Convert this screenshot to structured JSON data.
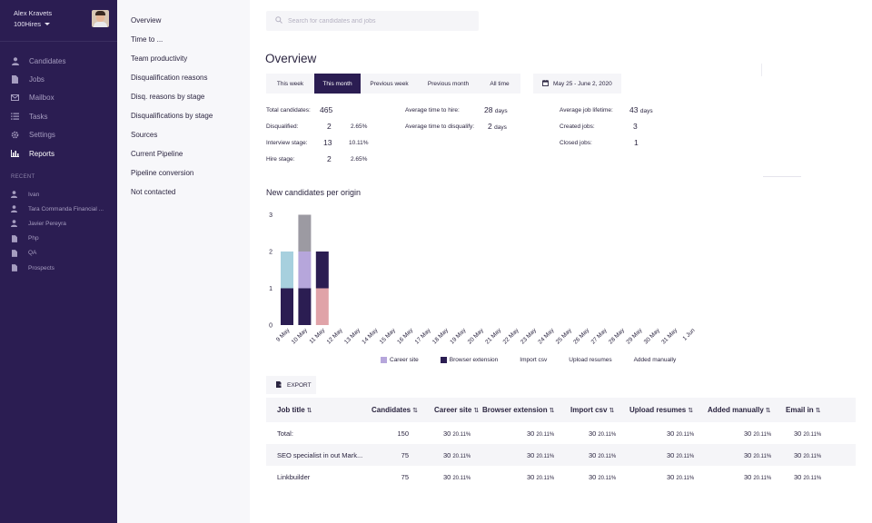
{
  "user": {
    "name": "Alex Kravets",
    "org": "100Hires"
  },
  "nav": [
    {
      "label": "Candidates",
      "icon": "person-icon",
      "active": false
    },
    {
      "label": "Jobs",
      "icon": "document-icon",
      "active": false
    },
    {
      "label": "Mailbox",
      "icon": "mail-icon",
      "active": false
    },
    {
      "label": "Tasks",
      "icon": "tasks-icon",
      "active": false
    },
    {
      "label": "Settings",
      "icon": "gear-icon",
      "active": false
    },
    {
      "label": "Reports",
      "icon": "bar-chart-icon",
      "active": true
    }
  ],
  "recent_title": "RECENT",
  "recent": [
    {
      "label": "Ivan",
      "icon": "person-icon"
    },
    {
      "label": "Tara Commanda Financial ...",
      "icon": "person-icon"
    },
    {
      "label": "Javier Pereyra",
      "icon": "person-icon"
    },
    {
      "label": "Php",
      "icon": "document-icon"
    },
    {
      "label": "QA",
      "icon": "document-icon"
    },
    {
      "label": "Prospects",
      "icon": "document-icon"
    }
  ],
  "submenu": [
    "Overview",
    "Time to ...",
    "Team productivity",
    "Disqualification reasons",
    "Disq. reasons by stage",
    "Disqualifications by stage",
    "Sources",
    "Current Pipeline",
    "Pipeline conversion",
    "Not contacted"
  ],
  "search": {
    "placeholder": "Search for candidates and jobs"
  },
  "page_title": "Overview",
  "tabs": [
    {
      "label": "This week",
      "active": false
    },
    {
      "label": "This month",
      "active": true
    },
    {
      "label": "Previous week",
      "active": false
    },
    {
      "label": "Previous month",
      "active": false
    },
    {
      "label": "All time",
      "active": false
    }
  ],
  "date_range": "May 25 - June 2, 2020",
  "stats": {
    "total_candidates": {
      "label": "Total candidates:",
      "value": "465"
    },
    "disqualified": {
      "label": "Disqualified:",
      "value": "2",
      "pct": "2.65%"
    },
    "interview_stage": {
      "label": "Interview stage:",
      "value": "13",
      "pct": "10.11%"
    },
    "hire_stage": {
      "label": "Hire stage:",
      "value": "2",
      "pct": "2.65%"
    },
    "avg_time_to_hire": {
      "label": "Average time to hire:",
      "value": "28",
      "unit": "days"
    },
    "avg_time_to_disqualify": {
      "label": "Average time to disqualify:",
      "value": "2",
      "unit": "days"
    },
    "avg_job_lifetime": {
      "label": "Average job lifetime:",
      "value": "43",
      "unit": "days"
    },
    "created_jobs": {
      "label": "Created jobs:",
      "value": "3"
    },
    "closed_jobs": {
      "label": "Closed jobs:",
      "value": "1"
    }
  },
  "chart_title": "New candidates per origin",
  "chart_data": {
    "type": "bar",
    "stacked": true,
    "categories": [
      "9 May",
      "10 May",
      "11 May",
      "12 May",
      "13 May",
      "14 May",
      "15 May",
      "16 May",
      "17 May",
      "18 May",
      "19 May",
      "20 May",
      "21 May",
      "22 May",
      "23 May",
      "24 May",
      "25 May",
      "26 May",
      "27 May",
      "28 May",
      "29 May",
      "30 May",
      "31 May",
      "1 Jun"
    ],
    "ylim": [
      0,
      3
    ],
    "yticks": [
      0,
      1,
      2,
      3
    ],
    "series": [
      {
        "name": "Browser extension",
        "color": "#2b1d52",
        "values": [
          1,
          1,
          0,
          0,
          0,
          0,
          0,
          0,
          0,
          0,
          0,
          0,
          0,
          0,
          0,
          0,
          0,
          0,
          0,
          0,
          0,
          0,
          0,
          0
        ]
      },
      {
        "name": "Career site",
        "color": "#b6a6db",
        "values": [
          0,
          1,
          0,
          0,
          0,
          0,
          0,
          0,
          0,
          0,
          0,
          0,
          0,
          0,
          0,
          0,
          0,
          0,
          0,
          0,
          0,
          0,
          0,
          0
        ]
      },
      {
        "name": "",
        "color": "#a7d0de",
        "values": [
          1,
          0,
          0,
          0,
          0,
          0,
          0,
          0,
          0,
          0,
          0,
          0,
          0,
          0,
          0,
          0,
          0,
          0,
          0,
          0,
          0,
          0,
          0,
          0
        ]
      },
      {
        "name": "",
        "color": "#9c9aa2",
        "values": [
          0,
          1,
          0,
          0,
          0,
          0,
          0,
          0,
          0,
          0,
          0,
          0,
          0,
          0,
          0,
          0,
          0,
          0,
          0,
          0,
          0,
          0,
          0,
          0
        ]
      },
      {
        "name": "",
        "color": "#e0a3a8",
        "values": [
          0,
          0,
          1,
          0,
          0,
          0,
          0,
          0,
          0,
          0,
          0,
          0,
          0,
          0,
          0,
          0,
          0,
          0,
          0,
          0,
          0,
          0,
          0,
          0
        ]
      },
      {
        "name": "",
        "color": "#2b1d52",
        "values": [
          0,
          0,
          1,
          0,
          0,
          0,
          0,
          0,
          0,
          0,
          0,
          0,
          0,
          0,
          0,
          0,
          0,
          0,
          0,
          0,
          0,
          0,
          0,
          0
        ]
      }
    ],
    "legend": [
      {
        "name": "Career site",
        "color": "#b6a6db",
        "swatch": true
      },
      {
        "name": "Browser extension",
        "color": "#2b1d52",
        "swatch": true
      },
      {
        "name": "Import csv",
        "swatch": false
      },
      {
        "name": "Upload resumes",
        "swatch": false
      },
      {
        "name": "Added manually",
        "swatch": false
      }
    ]
  },
  "export_label": "EXPORT",
  "table": {
    "columns": [
      "Job title",
      "Candidates",
      "Career site",
      "Browser extension",
      "Import csv",
      "Upload resumes",
      "Added manually",
      "Email in"
    ],
    "rows": [
      {
        "title": "Total:",
        "candidates": "150",
        "cells": [
          [
            "30",
            "20.11%"
          ],
          [
            "30",
            "20.11%"
          ],
          [
            "30",
            "20.11%"
          ],
          [
            "30",
            "20.11%"
          ],
          [
            "30",
            "20.11%"
          ],
          [
            "30",
            "20.11%"
          ]
        ]
      },
      {
        "title": "SEO specialist in out Mark...",
        "candidates": "75",
        "cells": [
          [
            "30",
            "20.11%"
          ],
          [
            "30",
            "20.11%"
          ],
          [
            "30",
            "20.11%"
          ],
          [
            "30",
            "20.11%"
          ],
          [
            "30",
            "20.11%"
          ],
          [
            "30",
            "20.11%"
          ]
        ]
      },
      {
        "title": "Linkbuilder",
        "candidates": "75",
        "cells": [
          [
            "30",
            "20.11%"
          ],
          [
            "30",
            "20.11%"
          ],
          [
            "30",
            "20.11%"
          ],
          [
            "30",
            "20.11%"
          ],
          [
            "30",
            "20.11%"
          ],
          [
            "30",
            "20.11%"
          ]
        ]
      }
    ]
  }
}
